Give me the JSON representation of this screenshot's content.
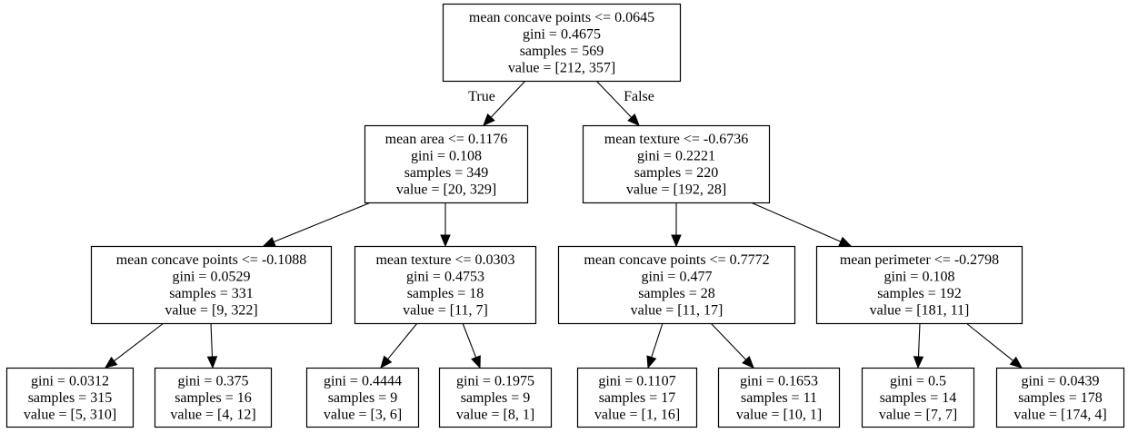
{
  "nodes": [
    {
      "id": "n0",
      "lines": [
        "mean concave points <= 0.0645",
        "gini = 0.4675",
        "samples = 569",
        "value = [212, 357]"
      ]
    },
    {
      "id": "n1",
      "lines": [
        "mean area <= 0.1176",
        "gini = 0.108",
        "samples = 349",
        "value = [20, 329]"
      ]
    },
    {
      "id": "n2",
      "lines": [
        "mean texture <= -0.6736",
        "gini = 0.2221",
        "samples = 220",
        "value = [192, 28]"
      ]
    },
    {
      "id": "n3",
      "lines": [
        "mean concave points <= -0.1088",
        "gini = 0.0529",
        "samples = 331",
        "value = [9, 322]"
      ]
    },
    {
      "id": "n4",
      "lines": [
        "mean texture <= 0.0303",
        "gini = 0.4753",
        "samples = 18",
        "value = [11, 7]"
      ]
    },
    {
      "id": "n5",
      "lines": [
        "mean concave points <= 0.7772",
        "gini = 0.477",
        "samples = 28",
        "value = [11, 17]"
      ]
    },
    {
      "id": "n6",
      "lines": [
        "mean perimeter <= -0.2798",
        "gini = 0.108",
        "samples = 192",
        "value = [181, 11]"
      ]
    },
    {
      "id": "n7",
      "lines": [
        "gini = 0.0312",
        "samples = 315",
        "value = [5, 310]"
      ]
    },
    {
      "id": "n8",
      "lines": [
        "gini = 0.375",
        "samples = 16",
        "value = [4, 12]"
      ]
    },
    {
      "id": "n9",
      "lines": [
        "gini = 0.4444",
        "samples = 9",
        "value = [3, 6]"
      ]
    },
    {
      "id": "n10",
      "lines": [
        "gini = 0.1975",
        "samples = 9",
        "value = [8, 1]"
      ]
    },
    {
      "id": "n11",
      "lines": [
        "gini = 0.1107",
        "samples = 17",
        "value = [1, 16]"
      ]
    },
    {
      "id": "n12",
      "lines": [
        "gini = 0.1653",
        "samples = 11",
        "value = [10, 1]"
      ]
    },
    {
      "id": "n13",
      "lines": [
        "gini = 0.5",
        "samples = 14",
        "value = [7, 7]"
      ]
    },
    {
      "id": "n14",
      "lines": [
        "gini = 0.0439",
        "samples = 178",
        "value = [174, 4]"
      ]
    }
  ],
  "edges": [
    {
      "from": "n0",
      "to": "n1",
      "label": "True"
    },
    {
      "from": "n0",
      "to": "n2",
      "label": "False"
    },
    {
      "from": "n1",
      "to": "n3",
      "label": ""
    },
    {
      "from": "n1",
      "to": "n4",
      "label": ""
    },
    {
      "from": "n2",
      "to": "n5",
      "label": ""
    },
    {
      "from": "n2",
      "to": "n6",
      "label": ""
    },
    {
      "from": "n3",
      "to": "n7",
      "label": ""
    },
    {
      "from": "n3",
      "to": "n8",
      "label": ""
    },
    {
      "from": "n4",
      "to": "n9",
      "label": ""
    },
    {
      "from": "n4",
      "to": "n10",
      "label": ""
    },
    {
      "from": "n5",
      "to": "n11",
      "label": ""
    },
    {
      "from": "n5",
      "to": "n12",
      "label": ""
    },
    {
      "from": "n6",
      "to": "n13",
      "label": ""
    },
    {
      "from": "n6",
      "to": "n14",
      "label": ""
    }
  ]
}
